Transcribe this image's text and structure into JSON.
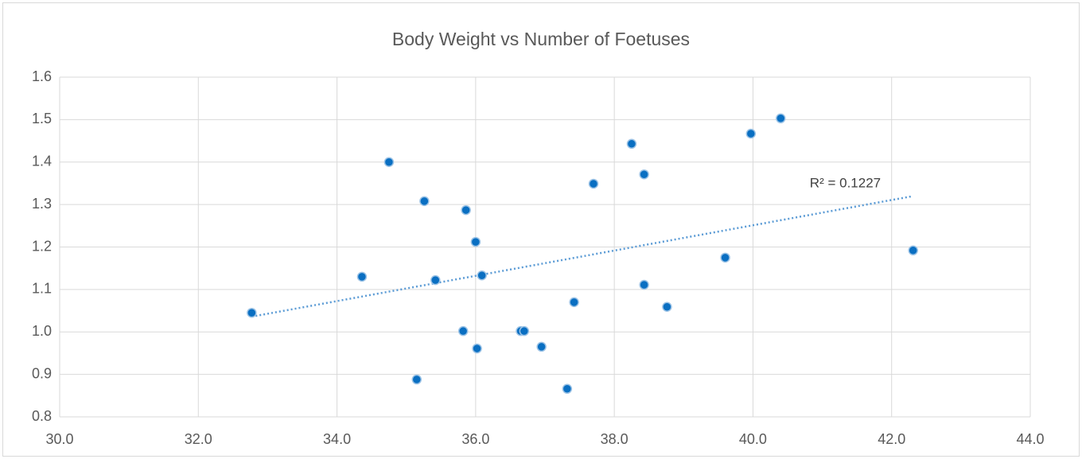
{
  "chart_data": {
    "type": "scatter",
    "title": "Body Weight vs Number of Foetuses",
    "series": [
      {
        "color": "#0a6fc2",
        "x": [
          32.77,
          34.36,
          34.75,
          35.15,
          35.26,
          35.42,
          35.82,
          35.86,
          36.0,
          36.02,
          36.09,
          36.65,
          36.7,
          36.95,
          37.32,
          37.42,
          37.7,
          38.25,
          38.43,
          38.43,
          38.76,
          39.6,
          39.97,
          40.4,
          42.31
        ],
        "values": [
          1.045,
          1.13,
          1.4,
          0.888,
          1.308,
          1.122,
          1.002,
          1.287,
          1.212,
          0.961,
          1.133,
          1.002,
          1.002,
          0.965,
          0.866,
          1.07,
          1.349,
          1.443,
          1.371,
          1.111,
          1.059,
          1.175,
          1.467,
          1.503,
          1.192
        ]
      }
    ],
    "trendline": {
      "x": [
        32.77,
        42.28
      ],
      "values": [
        1.036,
        1.319
      ],
      "color": "#5b9bd5",
      "label": "R² = 0.1227"
    },
    "xlim": [
      30,
      44
    ],
    "xticks": [
      {
        "value": 30,
        "label": "30.0"
      },
      {
        "value": 32,
        "label": "32.0"
      },
      {
        "value": 34,
        "label": "34.0"
      },
      {
        "value": 36,
        "label": "36.0"
      },
      {
        "value": 38,
        "label": "38.0"
      },
      {
        "value": 40,
        "label": "40.0"
      },
      {
        "value": 42,
        "label": "42.0"
      },
      {
        "value": 44,
        "label": "44.0"
      }
    ],
    "ylim": [
      0.8,
      1.6
    ],
    "yticks": [
      0.8,
      0.9,
      {
        "value": 1,
        "label": "1.0"
      },
      1.1,
      1.2,
      1.3,
      1.4,
      1.5,
      1.6
    ],
    "grid": true
  }
}
